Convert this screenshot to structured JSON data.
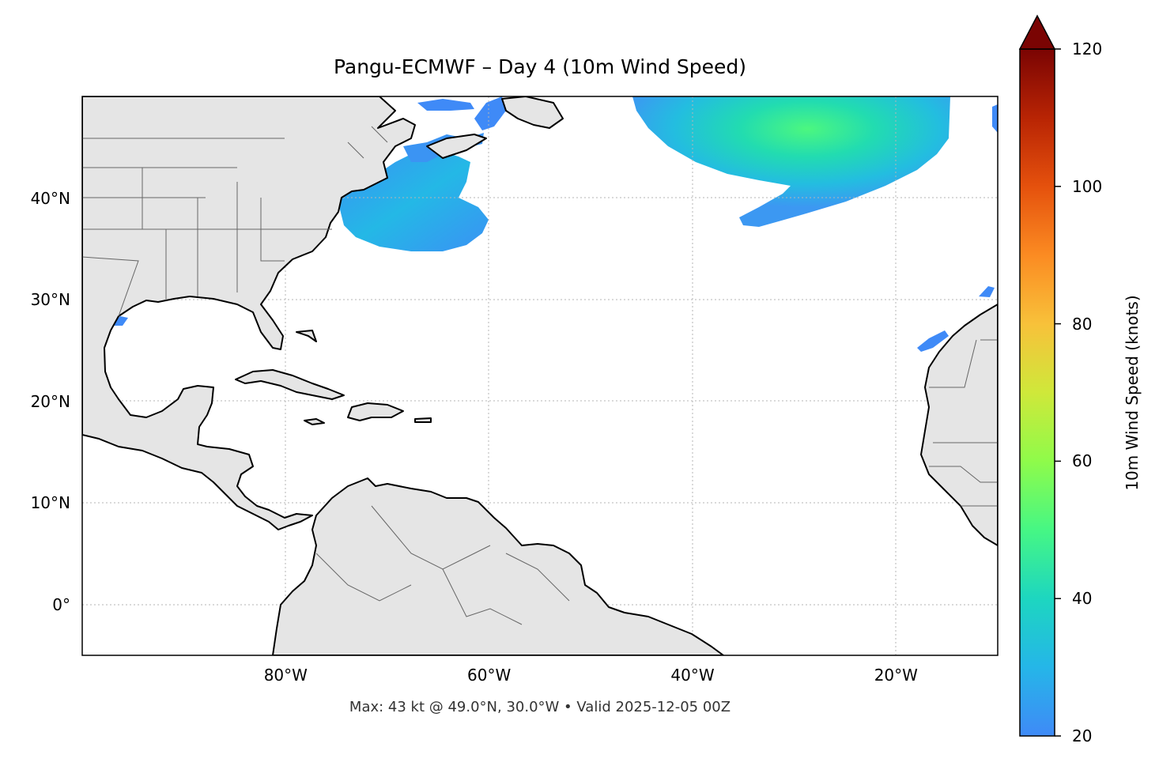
{
  "title": "Pangu-ECMWF – Day 4 (10m Wind Speed)",
  "footer": "Max: 43 kt @ 49.0°N, 30.0°W • Valid 2025-12-05 00Z",
  "map": {
    "lon_range": [
      -100,
      -10
    ],
    "lat_range": [
      -5,
      50
    ],
    "lat_ticks": [
      {
        "value": 40,
        "label": "40°N"
      },
      {
        "value": 30,
        "label": "30°N"
      },
      {
        "value": 20,
        "label": "20°N"
      },
      {
        "value": 10,
        "label": "10°N"
      },
      {
        "value": 0,
        "label": "0°"
      }
    ],
    "lon_ticks": [
      {
        "value": -80,
        "label": "80°W"
      },
      {
        "value": -60,
        "label": "60°W"
      },
      {
        "value": -40,
        "label": "40°W"
      },
      {
        "value": -20,
        "label": "20°W"
      }
    ],
    "land_color": "#e5e5e5",
    "coast_color": "#000000",
    "border_color": "#666666",
    "gridline_style": "dotted gray"
  },
  "colorbar": {
    "label": "10m Wind Speed (knots)",
    "min": 20,
    "max": 120,
    "ticks": [
      "20",
      "40",
      "60",
      "80",
      "100",
      "120"
    ],
    "extend": "max",
    "colormap": "turbo"
  },
  "wind_field": {
    "max_speed_kt": 43,
    "max_location": {
      "lat": 49.0,
      "lon": -30.0
    },
    "valid_time": "2025-12-05 00Z"
  }
}
